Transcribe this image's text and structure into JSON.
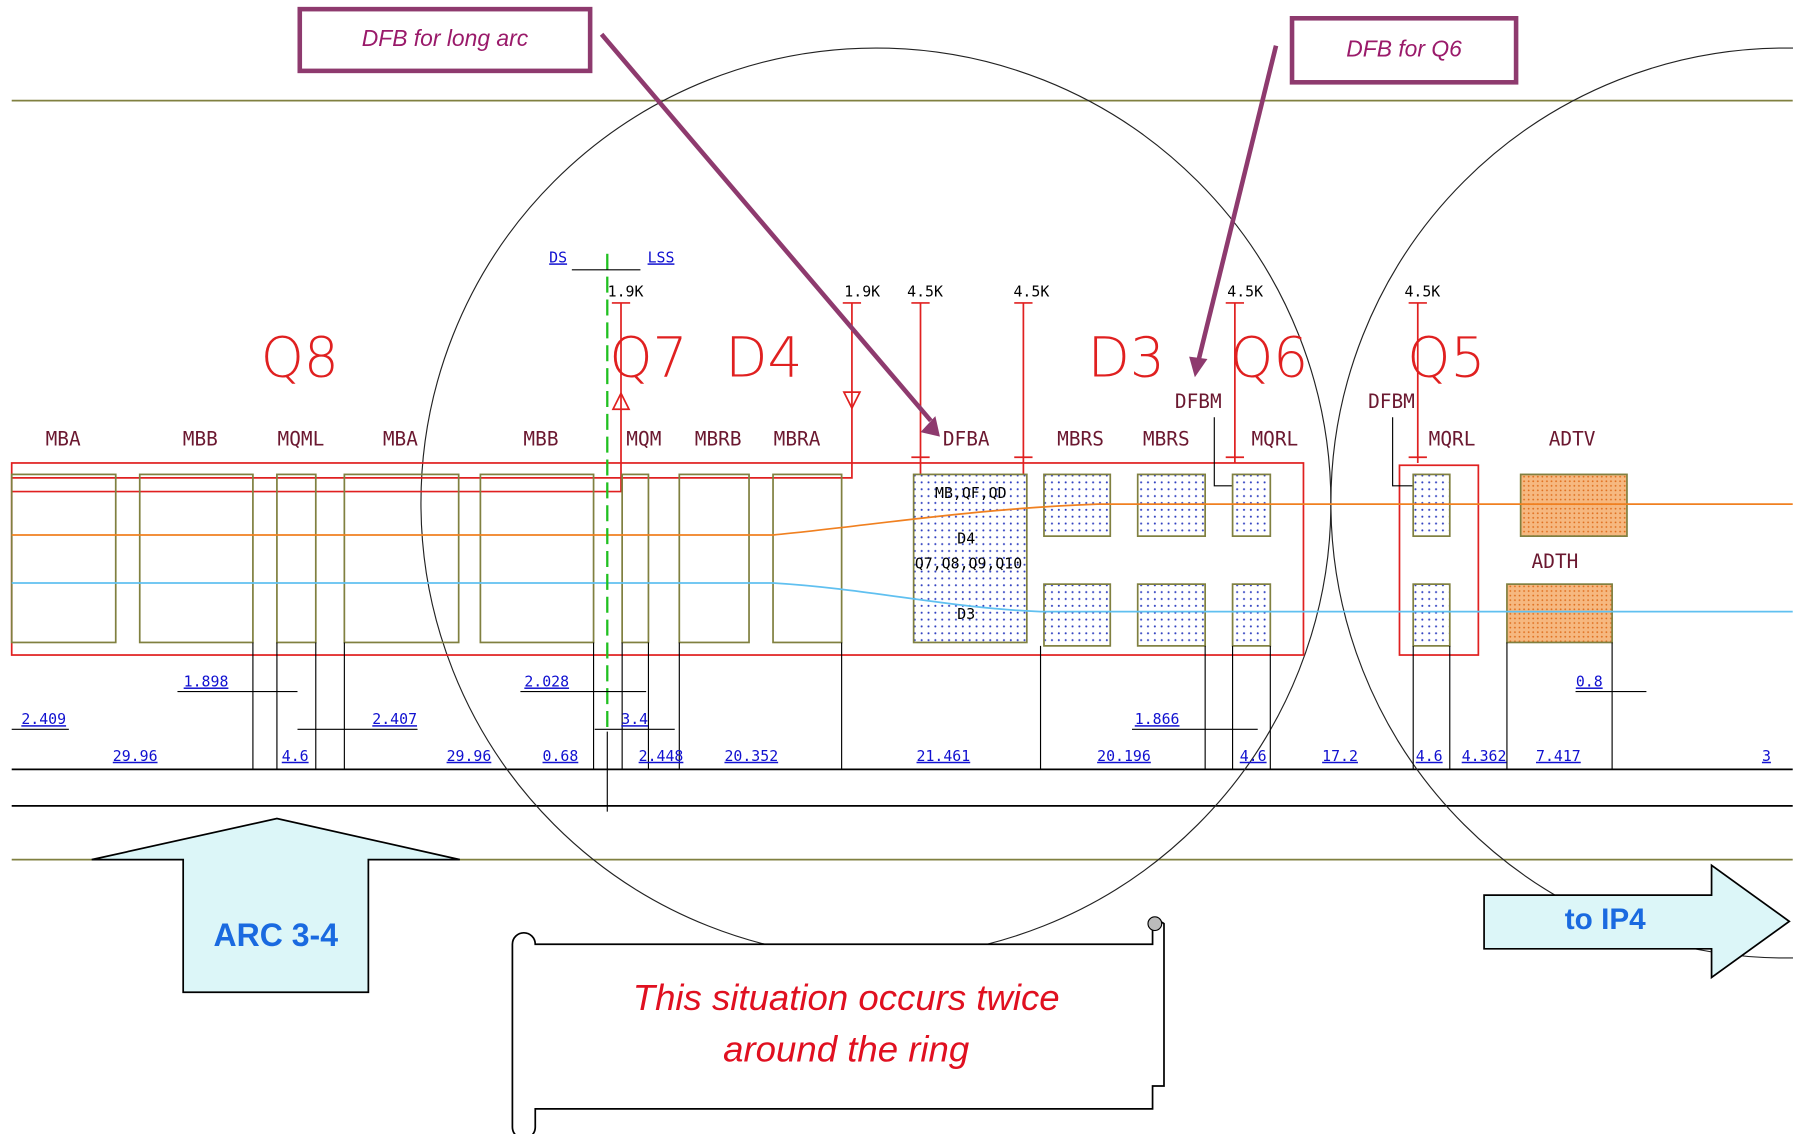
{
  "callouts": [
    "DFB for long arc",
    "DFB for Q6"
  ],
  "sections": [
    "DS",
    "LSS"
  ],
  "temperatures": [
    "1.9K",
    "1.9K",
    "4.5K",
    "4.5K",
    "4.5K",
    "4.5K"
  ],
  "groups": [
    "Q8",
    "Q7",
    "D4",
    "D3",
    "Q6",
    "Q5"
  ],
  "dfb_labels": [
    "DFBM",
    "DFBM"
  ],
  "magnets": [
    "MBA",
    "MBB",
    "MQML",
    "MBA",
    "MBB",
    "MQM",
    "MBRB",
    "MBRA",
    "DFBA",
    "MBRS",
    "MBRS",
    "MQRL",
    "MQRL",
    "ADTV",
    "ADTH"
  ],
  "dfba_contents": [
    "MB,QF,QD",
    "D4",
    "Q7,Q8,Q9,Q10",
    "D3"
  ],
  "dimensions": [
    "1.898",
    "2.028",
    "0.8",
    "2.409",
    "2.407",
    "3.4",
    "1.866",
    "29.96",
    "4.6",
    "29.96",
    "0.68",
    "2.448",
    "20.352",
    "21.461",
    "20.196",
    "4.6",
    "17.2",
    "4.6",
    "4.362",
    "7.417",
    "3"
  ],
  "arrows": [
    "ARC 3-4",
    "to IP4"
  ],
  "note": [
    "This situation occurs twice",
    "around the ring"
  ]
}
